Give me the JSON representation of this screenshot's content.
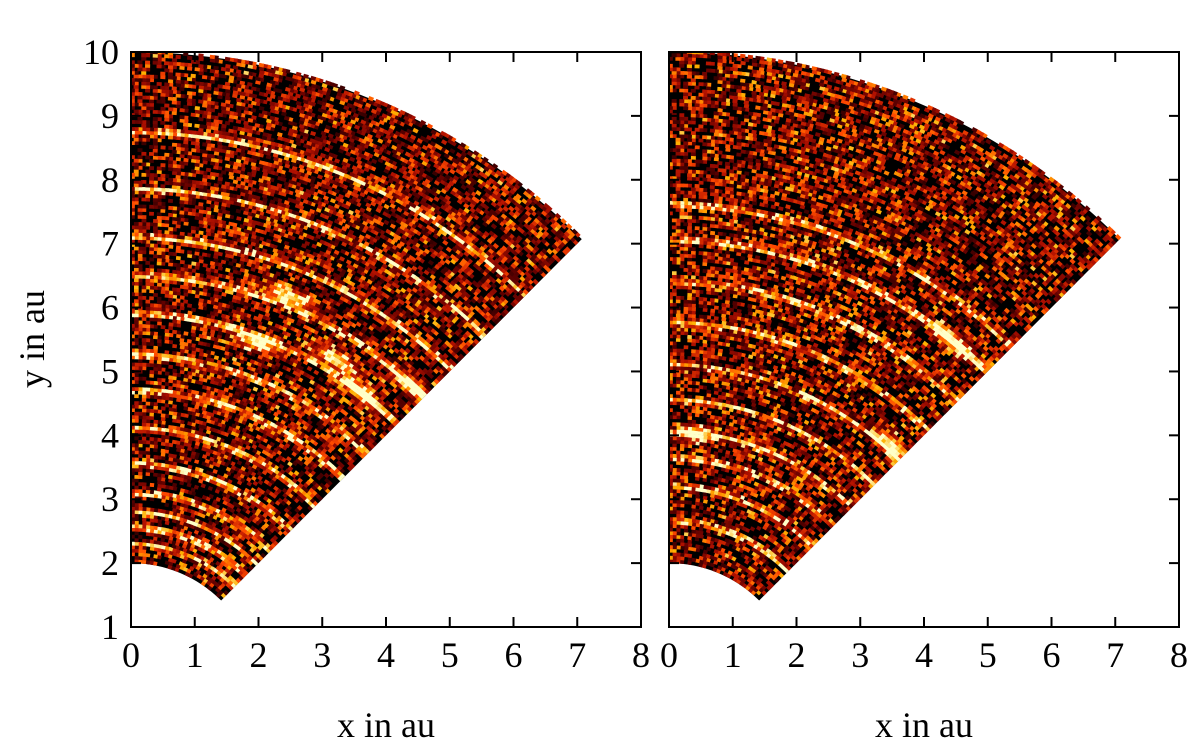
{
  "chart_data": [
    {
      "type": "heatmap",
      "panel": "left",
      "title": "",
      "xlabel": "x in au",
      "ylabel": "y in au",
      "xlim": [
        0,
        8
      ],
      "ylim": [
        1,
        10
      ],
      "xticks": [
        0,
        1,
        2,
        3,
        4,
        5,
        6,
        7,
        8
      ],
      "yticks": [
        1,
        2,
        3,
        4,
        5,
        6,
        7,
        8,
        9,
        10
      ],
      "domain": {
        "r_inner_au": 2,
        "r_outer_au": 10,
        "theta_min_deg": 45,
        "theta_max_deg": 90
      },
      "colormap": [
        "#000000",
        "#5a0000",
        "#b01000",
        "#ff4a00",
        "#ffb000",
        "#ffffc8"
      ],
      "bright_rings_au": [
        2.3,
        2.55,
        2.8,
        3.1,
        3.55,
        4.1,
        4.7,
        5.25,
        5.9,
        6.5,
        7.1,
        7.85,
        8.75
      ],
      "bright_clumps": [
        {
          "r_au": 6.65,
          "angle_deg": 68
        },
        {
          "r_au": 6.1,
          "angle_deg": 58
        },
        {
          "r_au": 6.5,
          "angle_deg": 47
        },
        {
          "r_au": 5.8,
          "angle_deg": 70
        },
        {
          "r_au": 5.9,
          "angle_deg": 52
        }
      ]
    },
    {
      "type": "heatmap",
      "panel": "right",
      "title": "",
      "xlabel": "x in au",
      "ylabel": "",
      "xlim": [
        0,
        8
      ],
      "ylim": [
        1,
        10
      ],
      "xticks": [
        0,
        1,
        2,
        3,
        4,
        5,
        6,
        7,
        8
      ],
      "yticks": [
        1,
        2,
        3,
        4,
        5,
        6,
        7,
        8,
        9,
        10
      ],
      "domain": {
        "r_inner_au": 2,
        "r_outer_au": 10,
        "theta_min_deg": 45,
        "theta_max_deg": 90
      },
      "colormap": [
        "#000000",
        "#5a0000",
        "#b01000",
        "#ff4a00",
        "#ffb000",
        "#ffffc8"
      ],
      "bright_rings_au": [
        2.65,
        3.2,
        3.65,
        4.05,
        4.55,
        5.1,
        5.75,
        6.4,
        7.05,
        7.6
      ],
      "bright_clumps": [
        {
          "r_au": 7.05,
          "angle_deg": 51
        },
        {
          "r_au": 5.2,
          "angle_deg": 48
        },
        {
          "r_au": 4.05,
          "angle_deg": 84
        }
      ]
    }
  ]
}
